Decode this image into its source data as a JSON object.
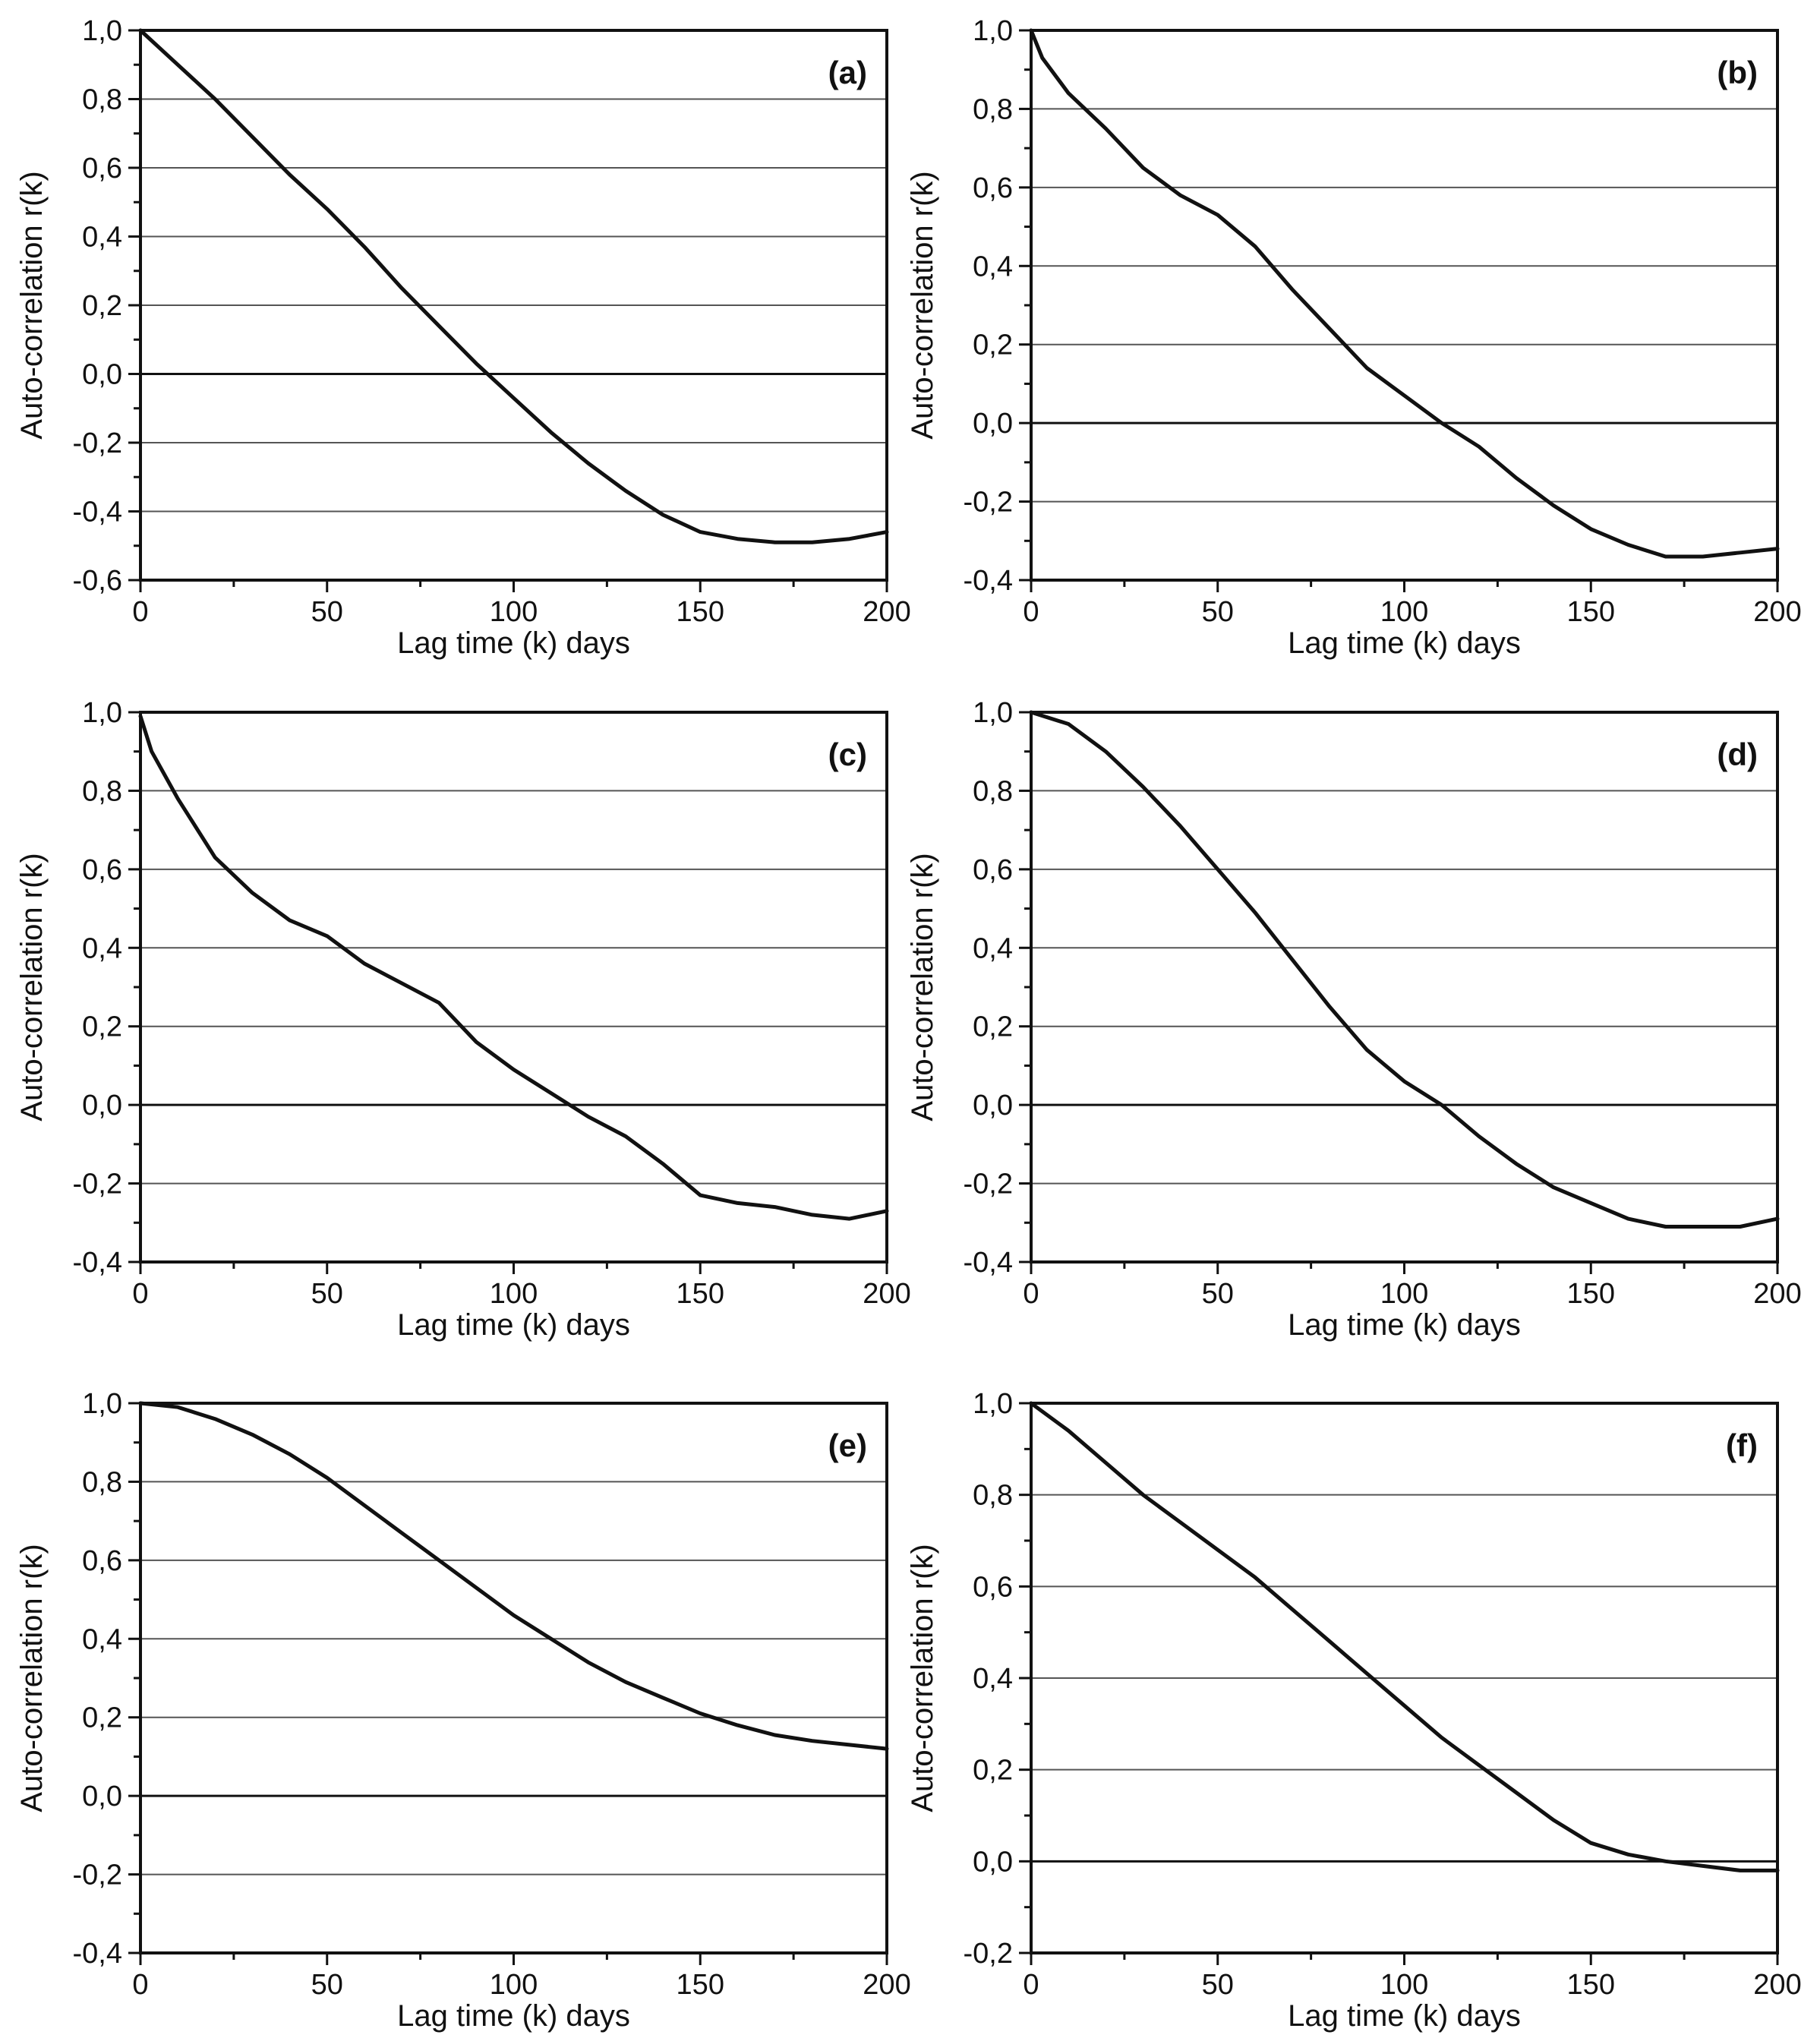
{
  "chart_data": [
    {
      "type": "line",
      "panel_label": "(a)",
      "xlabel": "Lag time (k) days",
      "ylabel": "Auto-correlation r(k)",
      "xlim": [
        0,
        200
      ],
      "ylim": [
        -0.6,
        1.0
      ],
      "xticks": [
        0,
        50,
        100,
        150,
        200
      ],
      "xtick_labels": [
        "0",
        "50",
        "100",
        "150",
        "200"
      ],
      "yticks": [
        -0.6,
        -0.4,
        -0.2,
        0.0,
        0.2,
        0.4,
        0.6,
        0.8,
        1.0
      ],
      "ytick_labels": [
        "-0,6",
        "-0,4",
        "-0,2",
        "0,0",
        "0,2",
        "0,4",
        "0,6",
        "0,8",
        "1,0"
      ],
      "grid": true,
      "series": [
        {
          "name": "r(k)",
          "x": [
            0,
            10,
            20,
            30,
            40,
            50,
            60,
            70,
            80,
            90,
            100,
            110,
            120,
            130,
            140,
            150,
            160,
            170,
            180,
            190,
            200
          ],
          "y": [
            1.0,
            0.9,
            0.8,
            0.69,
            0.58,
            0.48,
            0.37,
            0.25,
            0.14,
            0.03,
            -0.07,
            -0.17,
            -0.26,
            -0.34,
            -0.41,
            -0.46,
            -0.48,
            -0.49,
            -0.49,
            -0.48,
            -0.46
          ]
        }
      ]
    },
    {
      "type": "line",
      "panel_label": "(b)",
      "xlabel": "Lag time (k) days",
      "ylabel": "Auto-correlation r(k)",
      "xlim": [
        0,
        200
      ],
      "ylim": [
        -0.4,
        1.0
      ],
      "xticks": [
        0,
        50,
        100,
        150,
        200
      ],
      "xtick_labels": [
        "0",
        "50",
        "100",
        "150",
        "200"
      ],
      "yticks": [
        -0.4,
        -0.2,
        0.0,
        0.2,
        0.4,
        0.6,
        0.8,
        1.0
      ],
      "ytick_labels": [
        "-0,4",
        "-0,2",
        "0,0",
        "0,2",
        "0,4",
        "0,6",
        "0,8",
        "1,0"
      ],
      "grid": true,
      "series": [
        {
          "name": "r(k)",
          "x": [
            0,
            3,
            10,
            20,
            30,
            40,
            50,
            60,
            70,
            80,
            90,
            100,
            110,
            120,
            130,
            140,
            150,
            160,
            170,
            180,
            190,
            200
          ],
          "y": [
            1.0,
            0.93,
            0.84,
            0.75,
            0.65,
            0.58,
            0.53,
            0.45,
            0.34,
            0.24,
            0.14,
            0.07,
            0.0,
            -0.06,
            -0.14,
            -0.21,
            -0.27,
            -0.31,
            -0.34,
            -0.34,
            -0.33,
            -0.32
          ]
        }
      ]
    },
    {
      "type": "line",
      "panel_label": "(c)",
      "xlabel": "Lag time (k) days",
      "ylabel": "Auto-correlation r(k)",
      "xlim": [
        0,
        200
      ],
      "ylim": [
        -0.4,
        1.0
      ],
      "xticks": [
        0,
        50,
        100,
        150,
        200
      ],
      "xtick_labels": [
        "0",
        "50",
        "100",
        "150",
        "200"
      ],
      "yticks": [
        -0.4,
        -0.2,
        0.0,
        0.2,
        0.4,
        0.6,
        0.8,
        1.0
      ],
      "ytick_labels": [
        "-0,4",
        "-0,2",
        "0,0",
        "0,2",
        "0,4",
        "0,6",
        "0,8",
        "1,0"
      ],
      "grid": true,
      "series": [
        {
          "name": "r(k)",
          "x": [
            0,
            3,
            10,
            20,
            30,
            40,
            50,
            60,
            70,
            80,
            90,
            100,
            110,
            120,
            130,
            140,
            150,
            160,
            170,
            180,
            190,
            200
          ],
          "y": [
            0.99,
            0.9,
            0.78,
            0.63,
            0.54,
            0.47,
            0.43,
            0.36,
            0.31,
            0.26,
            0.16,
            0.09,
            0.03,
            -0.03,
            -0.08,
            -0.15,
            -0.23,
            -0.25,
            -0.26,
            -0.28,
            -0.29,
            -0.27
          ]
        }
      ]
    },
    {
      "type": "line",
      "panel_label": "(d)",
      "xlabel": "Lag time (k) days",
      "ylabel": "Auto-correlation r(k)",
      "xlim": [
        0,
        200
      ],
      "ylim": [
        -0.4,
        1.0
      ],
      "xticks": [
        0,
        50,
        100,
        150,
        200
      ],
      "xtick_labels": [
        "0",
        "50",
        "100",
        "150",
        "200"
      ],
      "yticks": [
        -0.4,
        -0.2,
        0.0,
        0.2,
        0.4,
        0.6,
        0.8,
        1.0
      ],
      "ytick_labels": [
        "-0,4",
        "-0,2",
        "0,0",
        "0,2",
        "0,4",
        "0,6",
        "0,8",
        "1,0"
      ],
      "grid": true,
      "series": [
        {
          "name": "r(k)",
          "x": [
            0,
            10,
            20,
            30,
            40,
            50,
            60,
            70,
            80,
            90,
            100,
            110,
            120,
            130,
            140,
            150,
            160,
            170,
            180,
            190,
            200
          ],
          "y": [
            1.0,
            0.97,
            0.9,
            0.81,
            0.71,
            0.6,
            0.49,
            0.37,
            0.25,
            0.14,
            0.06,
            0.0,
            -0.08,
            -0.15,
            -0.21,
            -0.25,
            -0.29,
            -0.31,
            -0.31,
            -0.31,
            -0.29
          ]
        }
      ]
    },
    {
      "type": "line",
      "panel_label": "(e)",
      "xlabel": "Lag time (k) days",
      "ylabel": "Auto-correlation r(k)",
      "xlim": [
        0,
        200
      ],
      "ylim": [
        -0.4,
        1.0
      ],
      "xticks": [
        0,
        50,
        100,
        150,
        200
      ],
      "xtick_labels": [
        "0",
        "50",
        "100",
        "150",
        "200"
      ],
      "yticks": [
        -0.4,
        -0.2,
        0.0,
        0.2,
        0.4,
        0.6,
        0.8,
        1.0
      ],
      "ytick_labels": [
        "-0,4",
        "-0,2",
        "0,0",
        "0,2",
        "0,4",
        "0,6",
        "0,8",
        "1,0"
      ],
      "grid": true,
      "series": [
        {
          "name": "r(k)",
          "x": [
            0,
            10,
            20,
            30,
            40,
            50,
            60,
            70,
            80,
            90,
            100,
            110,
            120,
            130,
            140,
            150,
            160,
            170,
            180,
            190,
            200
          ],
          "y": [
            1.0,
            0.99,
            0.96,
            0.92,
            0.87,
            0.81,
            0.74,
            0.67,
            0.6,
            0.53,
            0.46,
            0.4,
            0.34,
            0.29,
            0.25,
            0.21,
            0.18,
            0.155,
            0.14,
            0.13,
            0.12
          ]
        }
      ]
    },
    {
      "type": "line",
      "panel_label": "(f)",
      "xlabel": "Lag time (k) days",
      "ylabel": "Auto-correlation r(k)",
      "xlim": [
        0,
        200
      ],
      "ylim": [
        -0.2,
        1.0
      ],
      "xticks": [
        0,
        50,
        100,
        150,
        200
      ],
      "xtick_labels": [
        "0",
        "50",
        "100",
        "150",
        "200"
      ],
      "yticks": [
        -0.2,
        0.0,
        0.2,
        0.4,
        0.6,
        0.8,
        1.0
      ],
      "ytick_labels": [
        "-0,2",
        "0,0",
        "0,2",
        "0,4",
        "0,6",
        "0,8",
        "1,0"
      ],
      "grid": true,
      "series": [
        {
          "name": "r(k)",
          "x": [
            0,
            10,
            20,
            30,
            40,
            50,
            60,
            70,
            80,
            90,
            100,
            110,
            120,
            130,
            140,
            150,
            160,
            170,
            180,
            190,
            200
          ],
          "y": [
            1.0,
            0.94,
            0.87,
            0.8,
            0.74,
            0.68,
            0.62,
            0.55,
            0.48,
            0.41,
            0.34,
            0.27,
            0.21,
            0.15,
            0.09,
            0.04,
            0.015,
            0.0,
            -0.01,
            -0.02,
            -0.02
          ]
        }
      ]
    }
  ]
}
